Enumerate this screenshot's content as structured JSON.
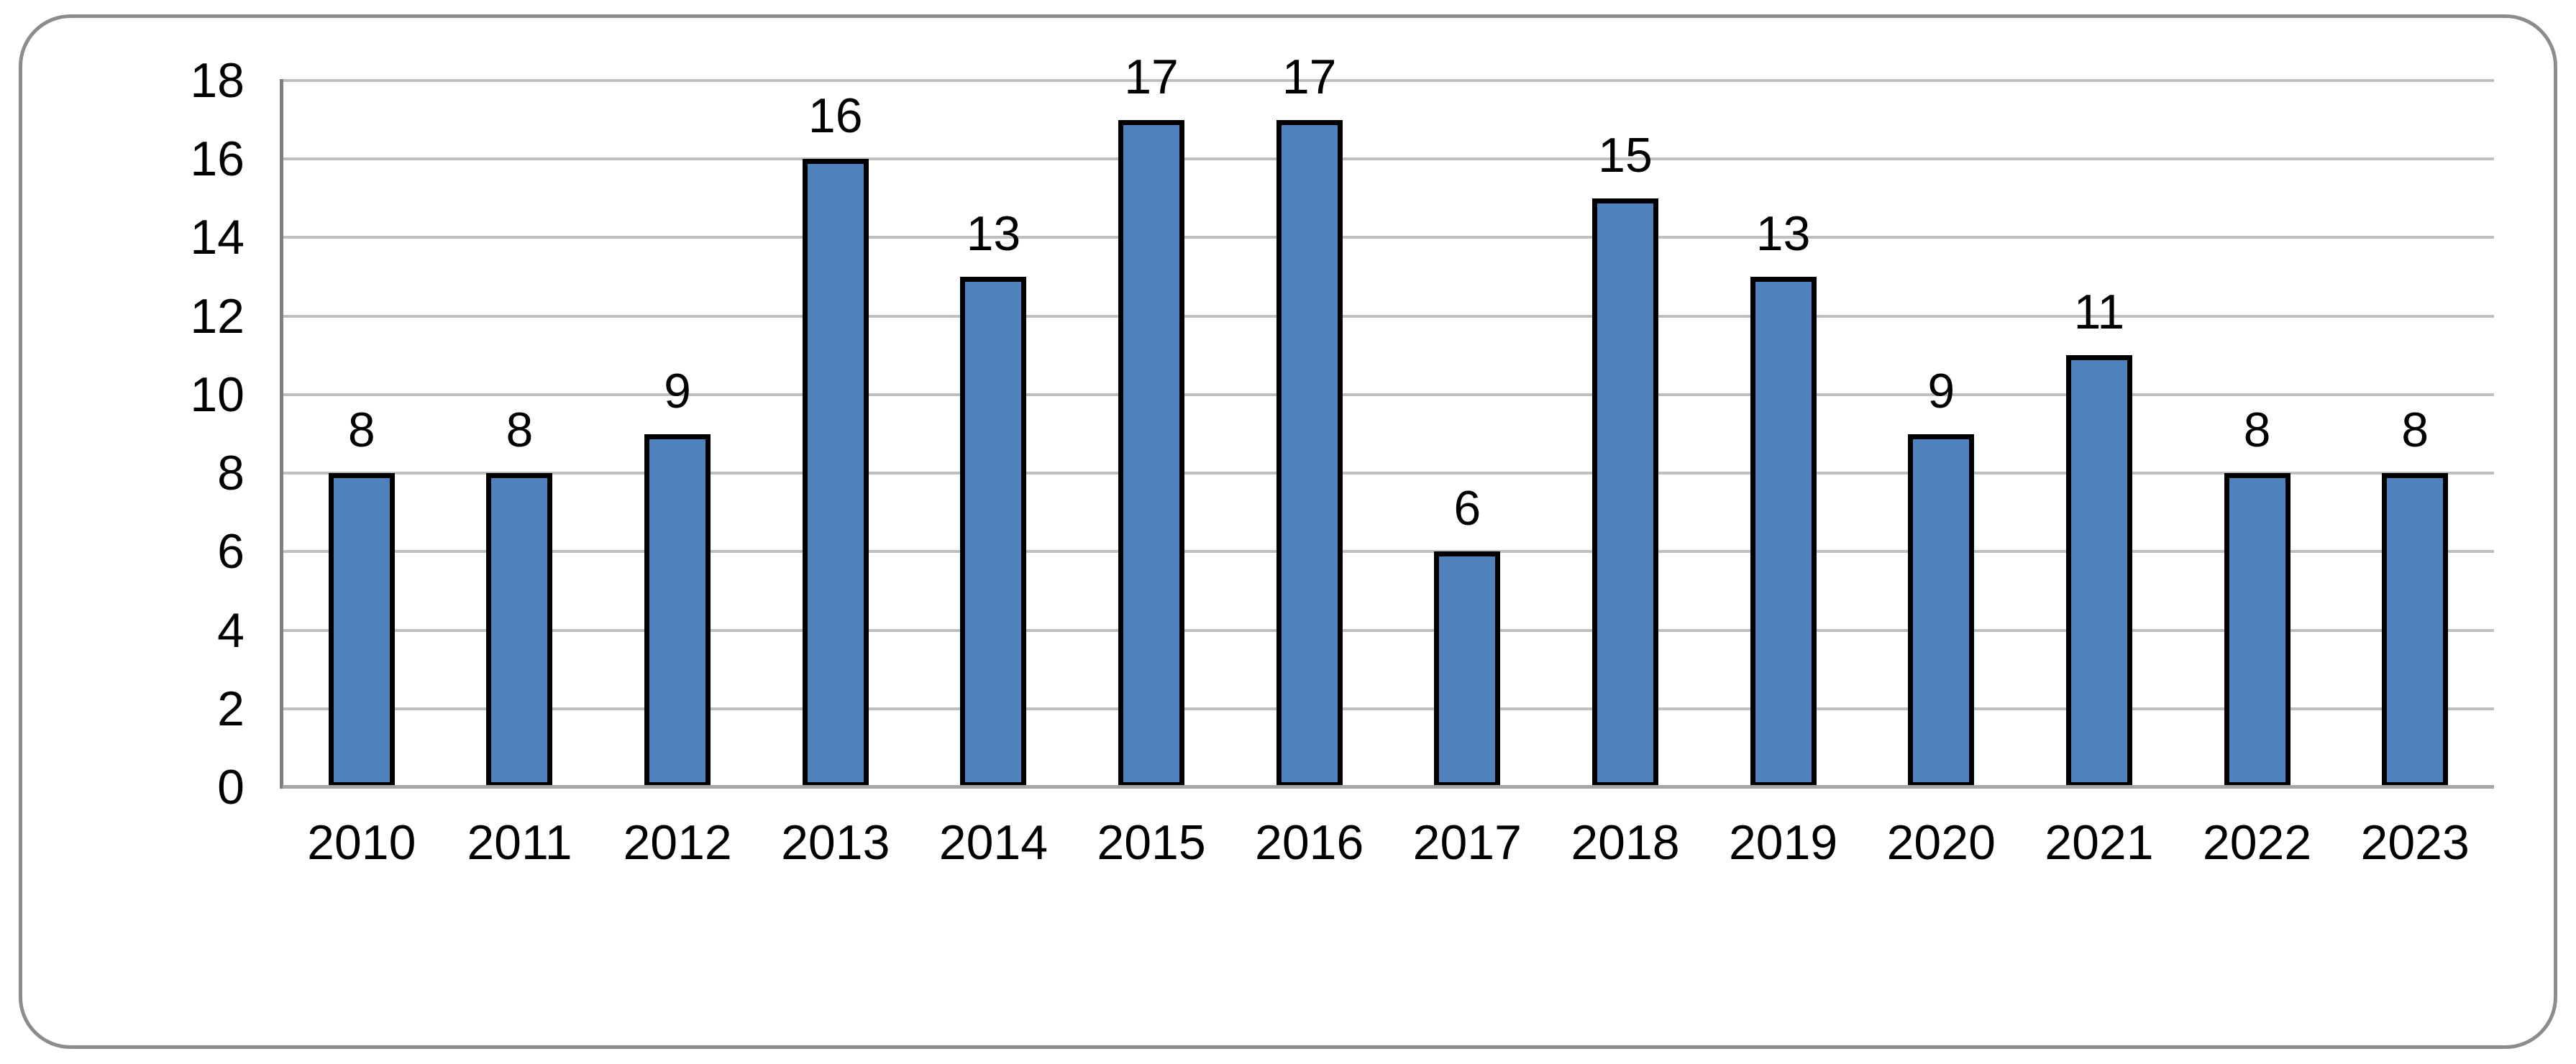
{
  "chart_data": {
    "type": "bar",
    "title": "",
    "xlabel": "",
    "ylabel": "",
    "categories": [
      "2010",
      "2011",
      "2012",
      "2013",
      "2014",
      "2015",
      "2016",
      "2017",
      "2018",
      "2019",
      "2020",
      "2021",
      "2022",
      "2023"
    ],
    "values": [
      8,
      8,
      9,
      16,
      13,
      17,
      17,
      6,
      15,
      13,
      9,
      11,
      8,
      8
    ],
    "ylim": [
      0,
      18
    ],
    "yticks": [
      0,
      2,
      4,
      6,
      8,
      10,
      12,
      14,
      16,
      18
    ],
    "grid": true,
    "legend": false,
    "show_data_labels": true,
    "colors": {
      "bar_fill": "#4F81BD",
      "bar_border": "#000000",
      "gridline": "#BFBFBF",
      "y_axis_line": "#808080",
      "x_axis_line": "#A6A6A6",
      "frame_border": "#8C8C8C",
      "label_text": "#000000",
      "background": "#FFFFFF"
    }
  }
}
